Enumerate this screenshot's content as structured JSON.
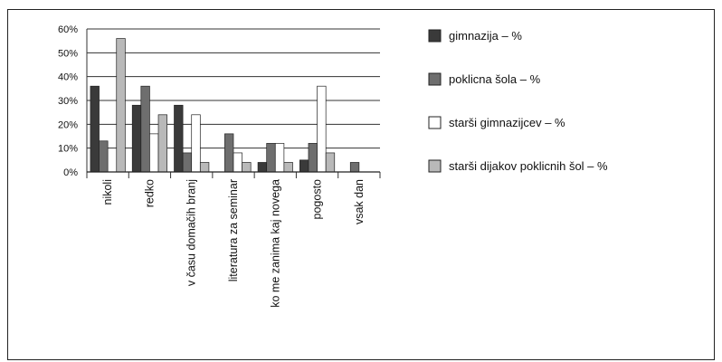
{
  "header_fragment": "",
  "chart_data": {
    "type": "bar",
    "title": "",
    "xlabel": "",
    "ylabel": "",
    "ylim": [
      0,
      60
    ],
    "yticks": [
      "0%",
      "10%",
      "20%",
      "30%",
      "40%",
      "50%",
      "60%"
    ],
    "grid": true,
    "legend_position": "right",
    "categories": [
      "nikoli",
      "redko",
      "v času domačih branj",
      "literatura za seminar",
      "ko me zanima kaj novega",
      "pogosto",
      "vsak dan"
    ],
    "series": [
      {
        "name": "gimnazija – %",
        "color": "#3a3a3a",
        "values": [
          36,
          28,
          28,
          0,
          4,
          5,
          0
        ]
      },
      {
        "name": "poklicna šola – %",
        "color": "#6e6e6e",
        "values": [
          13,
          36,
          8,
          16,
          12,
          12,
          4
        ]
      },
      {
        "name": "starši gimnazijcev – %",
        "color": "#ffffff",
        "values": [
          0,
          16,
          24,
          8,
          12,
          36,
          0
        ]
      },
      {
        "name": "starši dijakov poklicnih šol – %",
        "color": "#b9b9b9",
        "values": [
          56,
          24,
          4,
          4,
          4,
          8,
          0
        ]
      }
    ]
  }
}
